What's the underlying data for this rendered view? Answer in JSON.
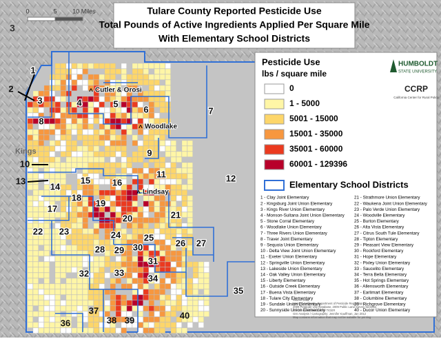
{
  "page_marker": "3",
  "title": [
    "Tulare County Reported Pesticide Use",
    "Total Pounds of Active Ingredients Applied Per Square Mile",
    "With Elementary School Districts"
  ],
  "scale_bar": [
    "0",
    "5",
    "10 Miles"
  ],
  "legend": {
    "title": "Pesticide Use",
    "unit": "lbs / square mile",
    "classes": [
      {
        "label": "0",
        "color": "#ffffff"
      },
      {
        "label": "1 - 5000",
        "color": "#fff6a6"
      },
      {
        "label": "5001 - 15000",
        "color": "#fdd66a"
      },
      {
        "label": "15001 - 35000",
        "color": "#f7973f"
      },
      {
        "label": "35001 - 60000",
        "color": "#eb3a1f"
      },
      {
        "label": "60001 - 129396",
        "color": "#b8002a"
      }
    ],
    "districts_label": "Elementary School Districts",
    "districts_color": "#2f6fd6"
  },
  "logos": {
    "humboldt": "HUMBOLDT",
    "humboldt_sub": "STATE UNIVERSITY",
    "ccrp": "CCRP",
    "ccrp_sub": "California Center for Rural Policy"
  },
  "places": [
    "Cutler & Orosi",
    "Woodlake",
    "Lindsay",
    "Kings"
  ],
  "district_labels": [
    "1",
    "2",
    "3",
    "4",
    "5",
    "6",
    "7",
    "8",
    "9",
    "10",
    "11",
    "12",
    "13",
    "14",
    "15",
    "16",
    "17",
    "18",
    "19",
    "20",
    "21",
    "22",
    "23",
    "24",
    "25",
    "26",
    "27",
    "28",
    "29",
    "30",
    "31",
    "32",
    "33",
    "34",
    "35",
    "36",
    "37",
    "38",
    "39",
    "40"
  ],
  "districts": [
    "1 - Clay Joint Elementary",
    "2 - Kingsburg Joint Union Elementary",
    "3 - Kings River Union Elementary",
    "4 - Monson-Sultana Joint Union Elementary",
    "5 - Stone Corral Elementary",
    "6 - Woodlake Union Elementary",
    "7 - Three Rivers Union Elementary",
    "8 - Traver Joint Elementary",
    "9 - Sequoia Union Elementary",
    "10 - Delta View Joint Union Elementary",
    "11 - Exeter Union Elementary",
    "12 - Springville Union Elementary",
    "13 - Lakeside Union Elementary",
    "14 - Oak Valley Union Elementary",
    "15 - Liberty Elementary",
    "16 - Outside Creek Elementary",
    "17 - Buena Vista Elementary",
    "18 - Tulare City Elementary",
    "19 - Sundale Union Elementary",
    "20 - Sunnyside Union Elementary",
    "21 - Strathmore Union Elementary",
    "22 - Waukena Joint Union Elementary",
    "23 - Palo Verde Union Elementary",
    "24 - Woodville Elementary",
    "25 - Burton Elementary",
    "26 - Alta Vista Elementary",
    "27 - Citrus South Tule Elementary",
    "28 - Tipton Elementary",
    "29 - Pleasant View Elementary",
    "30 - Rockford Elementary",
    "31 - Hope Elementary",
    "32 - Pixley Union Elementary",
    "33 - Saucelito Elementary",
    "34 - Terra Bella Elementary",
    "35 - Hot Springs Elementary",
    "36 - Allensworth Elementary",
    "37 - Earlimart Elementary",
    "38 - Columbine Elementary",
    "39 - Richgrove Elementary",
    "40 - Ducor Union Elementary"
  ],
  "source": [
    "Source Data:",
    "State of California, Department of Pesticide Regulation",
    "2009 Pesticide Use Database, 2009 Public Land Survey Sections",
    "US Census Bureau, 2009 TIGER",
    "GIS Analysis / Cartography: Jennifer Kauffman, Jan 2012",
    "Map contains information that may not be suitable for printing"
  ]
}
